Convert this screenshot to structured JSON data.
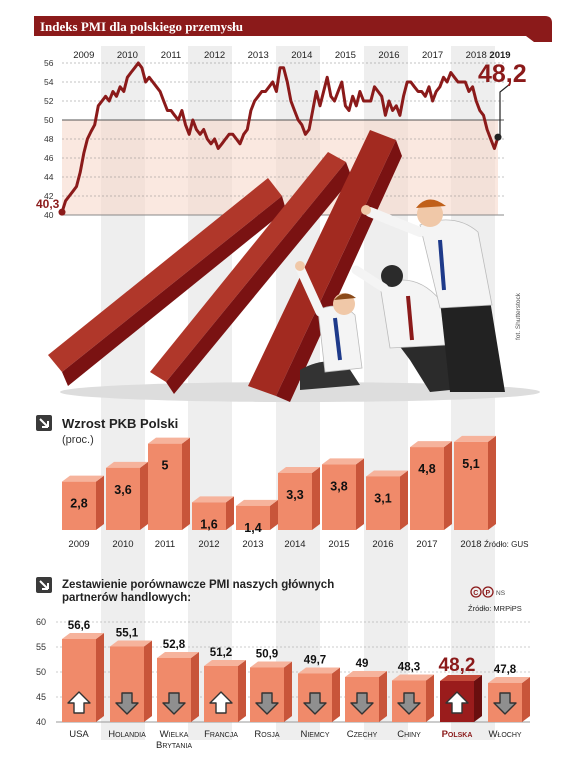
{
  "colors": {
    "brand": "#8b1a1a",
    "bar": "#f08a6a",
    "bar_side": "#c8553a",
    "bar_top": "#f6b39c",
    "poland_bar": "#9a1c1c",
    "grid_band": "#f7d9cc",
    "arrow_grey": "#8f8f8f",
    "stripe": "#eeeeee"
  },
  "chart_data": [
    {
      "type": "line",
      "title": "Indeks PMI dla polskiego przemysłu",
      "x_labels": [
        "2009",
        "2010",
        "2011",
        "2012",
        "2013",
        "2014",
        "2015",
        "2016",
        "2017",
        "2018",
        "2019"
      ],
      "ylim": [
        40,
        56
      ],
      "yticks": [
        40,
        42,
        44,
        46,
        48,
        50,
        52,
        54,
        56
      ],
      "start_label": "40,3",
      "end_label": "48,2",
      "grid": true,
      "series": [
        {
          "x": [
            "2009-01",
            "2009-02",
            "2009-03",
            "2009-04",
            "2009-05",
            "2009-06",
            "2009-07",
            "2009-08",
            "2009-09",
            "2009-10",
            "2009-11",
            "2009-12",
            "2010-01",
            "2010-02",
            "2010-03",
            "2010-04",
            "2010-05",
            "2010-06",
            "2010-07",
            "2010-08",
            "2010-09",
            "2010-10",
            "2010-11",
            "2010-12",
            "2011-01",
            "2011-02",
            "2011-03",
            "2011-04",
            "2011-05",
            "2011-06",
            "2011-07",
            "2011-08",
            "2011-09",
            "2011-10",
            "2011-11",
            "2011-12",
            "2012-01",
            "2012-02",
            "2012-03",
            "2012-04",
            "2012-05",
            "2012-06",
            "2012-07",
            "2012-08",
            "2012-09",
            "2012-10",
            "2012-11",
            "2012-12",
            "2013-01",
            "2013-02",
            "2013-03",
            "2013-04",
            "2013-05",
            "2013-06",
            "2013-07",
            "2013-08",
            "2013-09",
            "2013-10",
            "2013-11",
            "2013-12",
            "2014-01",
            "2014-02",
            "2014-03",
            "2014-04",
            "2014-05",
            "2014-06",
            "2014-07",
            "2014-08",
            "2014-09",
            "2014-10",
            "2014-11",
            "2014-12",
            "2015-01",
            "2015-02",
            "2015-03",
            "2015-04",
            "2015-05",
            "2015-06",
            "2015-07",
            "2015-08",
            "2015-09",
            "2015-10",
            "2015-11",
            "2015-12",
            "2016-01",
            "2016-02",
            "2016-03",
            "2016-04",
            "2016-05",
            "2016-06",
            "2016-07",
            "2016-08",
            "2016-09",
            "2016-10",
            "2016-11",
            "2016-12",
            "2017-01",
            "2017-02",
            "2017-03",
            "2017-04",
            "2017-05",
            "2017-06",
            "2017-07",
            "2017-08",
            "2017-09",
            "2017-10",
            "2017-11",
            "2017-12",
            "2018-01",
            "2018-02",
            "2018-03",
            "2018-04",
            "2018-05",
            "2018-06",
            "2018-07",
            "2018-08",
            "2018-09",
            "2018-10",
            "2018-11",
            "2018-12",
            "2019-01"
          ],
          "y": [
            40.3,
            41.5,
            42.0,
            42.5,
            43.0,
            44.5,
            46.5,
            48.0,
            48.8,
            49.5,
            51.5,
            52.0,
            52.5,
            52.0,
            53.0,
            52.5,
            53.5,
            53.0,
            54.5,
            55.0,
            55.5,
            56.0,
            55.5,
            54.0,
            54.5,
            54.0,
            53.5,
            53.0,
            52.0,
            51.0,
            51.0,
            50.5,
            50.0,
            51.0,
            49.5,
            48.5,
            50.0,
            49.0,
            48.5,
            49.0,
            48.0,
            47.5,
            48.0,
            47.0,
            47.5,
            48.0,
            48.5,
            48.5,
            48.0,
            47.5,
            48.5,
            49.0,
            51.0,
            52.0,
            52.5,
            53.0,
            53.0,
            53.5,
            54.0,
            53.0,
            55.5,
            55.5,
            54.0,
            52.0,
            51.0,
            50.0,
            49.5,
            48.5,
            49.0,
            51.0,
            53.0,
            51.5,
            53.0,
            54.5,
            52.5,
            52.0,
            53.0,
            54.0,
            51.5,
            51.0,
            52.5,
            51.5,
            53.0,
            52.0,
            52.0,
            52.0,
            53.5,
            53.0,
            52.5,
            50.5,
            52.0,
            51.0,
            51.5,
            50.5,
            52.5,
            54.0,
            54.0,
            53.5,
            53.0,
            53.0,
            52.5,
            53.5,
            52.0,
            53.0,
            53.5,
            54.5,
            54.0,
            55.0,
            54.5,
            54.0,
            54.0,
            54.0,
            53.0,
            53.5,
            52.0,
            51.0,
            50.5,
            49.0,
            48.0,
            47.0,
            48.2
          ]
        }
      ]
    },
    {
      "type": "bar",
      "title": "Wzrost PKB Polski",
      "subtitle": "(proc.)",
      "source": "Źródło: GUS",
      "categories": [
        "2009",
        "2010",
        "2011",
        "2012",
        "2013",
        "2014",
        "2015",
        "2016",
        "2017",
        "2018"
      ],
      "values": [
        2.8,
        3.6,
        5.0,
        1.6,
        1.4,
        3.3,
        3.8,
        3.1,
        4.8,
        5.1
      ],
      "value_labels": [
        "2,8",
        "3,6",
        "5",
        "1,6",
        "1,4",
        "3,3",
        "3,8",
        "3,1",
        "4,8",
        "5,1"
      ],
      "ylim": [
        0,
        5.5
      ]
    },
    {
      "type": "bar",
      "title_line1": "Zestawienie porównawcze PMI naszych głównych",
      "title_line2": "partnerów handlowych:",
      "source": "Źródło: MRPiPS",
      "credit": "NS",
      "categories": [
        "USA",
        "Holandia",
        "Wielka|Brytania",
        "Francja",
        "Rosja",
        "Niemcy",
        "Czechy",
        "Chiny",
        "Polska",
        "Włochy"
      ],
      "values": [
        56.6,
        55.1,
        52.8,
        51.2,
        50.9,
        49.7,
        49.0,
        48.3,
        48.2,
        47.8
      ],
      "value_labels": [
        "56,6",
        "55,1",
        "52,8",
        "51,2",
        "50,9",
        "49,7",
        "49",
        "48,3",
        "48,2",
        "47,8"
      ],
      "arrows": [
        "up",
        "down",
        "down",
        "up",
        "down",
        "down",
        "down",
        "down",
        "up",
        "down"
      ],
      "highlight": "Polska",
      "ylim": [
        40,
        60
      ],
      "yticks": [
        40,
        45,
        50,
        55,
        60
      ]
    }
  ],
  "photo_credit": "fot. Shutterstock"
}
